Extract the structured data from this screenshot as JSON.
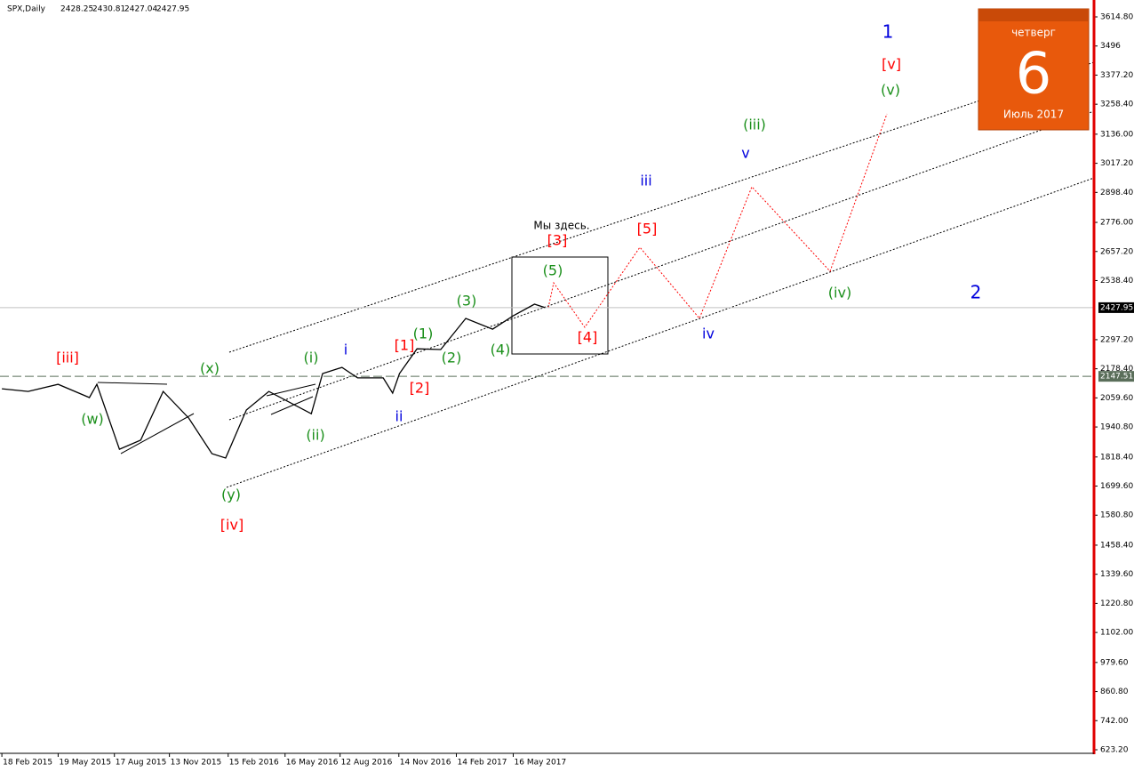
{
  "chart_data": {
    "type": "line",
    "symbol": "SPX,Daily",
    "ohlc": [
      2428.25,
      2430.81,
      2427.04,
      2427.95
    ],
    "x": [
      "2015-02-18",
      "2015-04-01",
      "2015-05-19",
      "2015-07-08",
      "2015-07-20",
      "2015-08-25",
      "2015-09-28",
      "2015-11-03",
      "2015-12-14",
      "2016-01-20",
      "2016-02-11",
      "2016-03-15",
      "2016-04-20",
      "2016-06-27",
      "2016-07-15",
      "2016-08-15",
      "2016-09-09",
      "2016-10-20",
      "2016-11-04",
      "2016-11-15",
      "2016-12-13",
      "2017-01-20",
      "2017-03-01",
      "2017-04-13",
      "2017-05-16",
      "2017-06-19",
      "2017-07-06"
    ],
    "series": [
      {
        "name": "SPX",
        "color": "#000000",
        "values": [
          2097,
          2086,
          2115,
          2061,
          2115,
          1850,
          1887,
          2086,
          1977,
          1832,
          1814,
          2010,
          2086,
          1995,
          2159,
          2184,
          2141,
          2141,
          2079,
          2159,
          2260,
          2257,
          2384,
          2340,
          2395,
          2442,
          2428
        ]
      }
    ],
    "xlim": [
      "2015-02-15",
      "2019-12-01"
    ],
    "xticks": [
      {
        "value": "2015-02-18",
        "label": "18 Feb 2015"
      },
      {
        "value": "2015-05-19",
        "label": "19 May 2015"
      },
      {
        "value": "2015-08-17",
        "label": "17 Aug 2015"
      },
      {
        "value": "2015-11-13",
        "label": "13 Nov 2015"
      },
      {
        "value": "2016-02-15",
        "label": "15 Feb 2016"
      },
      {
        "value": "2016-05-16",
        "label": "16 May 2016"
      },
      {
        "value": "2016-08-12",
        "label": "12 Aug 2016"
      },
      {
        "value": "2016-11-14",
        "label": "14 Nov 2016"
      },
      {
        "value": "2017-02-14",
        "label": "14 Feb 2017"
      },
      {
        "value": "2017-05-16",
        "label": "16 May 2017"
      }
    ],
    "ylim": [
      623.2,
      3614.8
    ],
    "yticks": [
      {
        "value": 3614.8,
        "label": "3614.80"
      },
      3496,
      {
        "value": 3377.2,
        "label": "3377.20"
      },
      {
        "value": 3258.4,
        "label": "3258.40"
      },
      {
        "value": 3136,
        "label": "3136.00"
      },
      {
        "value": 3017.2,
        "label": "3017.20"
      },
      {
        "value": 2898.4,
        "label": "2898.40"
      },
      {
        "value": 2776,
        "label": "2776.00"
      },
      {
        "value": 2657.2,
        "label": "2657.20"
      },
      {
        "value": 2538.4,
        "label": "2538.40"
      },
      {
        "value": 2297.2,
        "label": "2297.20"
      },
      {
        "value": 2178.4,
        "label": "2178.40"
      },
      {
        "value": 2059.6,
        "label": "2059.60"
      },
      {
        "value": 1940.8,
        "label": "1940.80"
      },
      {
        "value": 1818.4,
        "label": "1818.40"
      },
      {
        "value": 1699.6,
        "label": "1699.60"
      },
      {
        "value": 1580.8,
        "label": "1580.80"
      },
      {
        "value": 1458.4,
        "label": "1458.40"
      },
      {
        "value": 1339.6,
        "label": "1339.60"
      },
      {
        "value": 1220.8,
        "label": "1220.80"
      },
      {
        "value": 1102,
        "label": "1102.00"
      },
      {
        "value": 979.6,
        "label": "979.60"
      },
      {
        "value": 860.8,
        "label": "860.80"
      },
      {
        "value": 742,
        "label": "742.00"
      },
      {
        "value": 623.2,
        "label": "623.20"
      }
    ],
    "hlines": [
      {
        "value": 2427.95,
        "color": "#c0c0c0",
        "style": "solid"
      },
      {
        "value": 2147.51,
        "color": "#5a6e5a",
        "style": "dashed"
      }
    ],
    "annotations": [
      {
        "text": "[iii]",
        "color": "#ff0000"
      },
      {
        "text": "[iv]",
        "color": "#ff0000"
      },
      {
        "text": "[1]",
        "color": "#ff0000"
      },
      {
        "text": "[2]",
        "color": "#ff0000"
      },
      {
        "text": "[3]",
        "color": "#ff0000"
      },
      {
        "text": "[4]",
        "color": "#ff0000"
      },
      {
        "text": "[5]",
        "color": "#ff0000"
      },
      {
        "text": "[v]",
        "color": "#ff0000"
      },
      {
        "text": "(w)",
        "color": "#1a8f1a"
      },
      {
        "text": "(x)",
        "color": "#1a8f1a"
      },
      {
        "text": "(y)",
        "color": "#1a8f1a"
      },
      {
        "text": "(i)",
        "color": "#1a8f1a"
      },
      {
        "text": "(ii)",
        "color": "#1a8f1a"
      },
      {
        "text": "(1)",
        "color": "#1a8f1a"
      },
      {
        "text": "(2)",
        "color": "#1a8f1a"
      },
      {
        "text": "(3)",
        "color": "#1a8f1a"
      },
      {
        "text": "(4)",
        "color": "#1a8f1a"
      },
      {
        "text": "(5)",
        "color": "#1a8f1a"
      },
      {
        "text": "(iii)",
        "color": "#1a8f1a"
      },
      {
        "text": "(iv)",
        "color": "#1a8f1a"
      },
      {
        "text": "(v)",
        "color": "#1a8f1a"
      },
      {
        "text": "1",
        "color": "#0000dd"
      },
      {
        "text": "2",
        "color": "#0000dd"
      },
      {
        "text": "i",
        "color": "#0000dd"
      },
      {
        "text": "ii",
        "color": "#0000dd"
      },
      {
        "text": "iii",
        "color": "#0000dd"
      },
      {
        "text": "v",
        "color": "#0000dd"
      },
      {
        "text": "iv",
        "color": "#0000dd"
      },
      {
        "text": "Мы здесь.",
        "color": "#000000"
      }
    ],
    "calendar": {
      "weekday": "четверг",
      "day": 6,
      "month": "Июль 2017"
    }
  }
}
